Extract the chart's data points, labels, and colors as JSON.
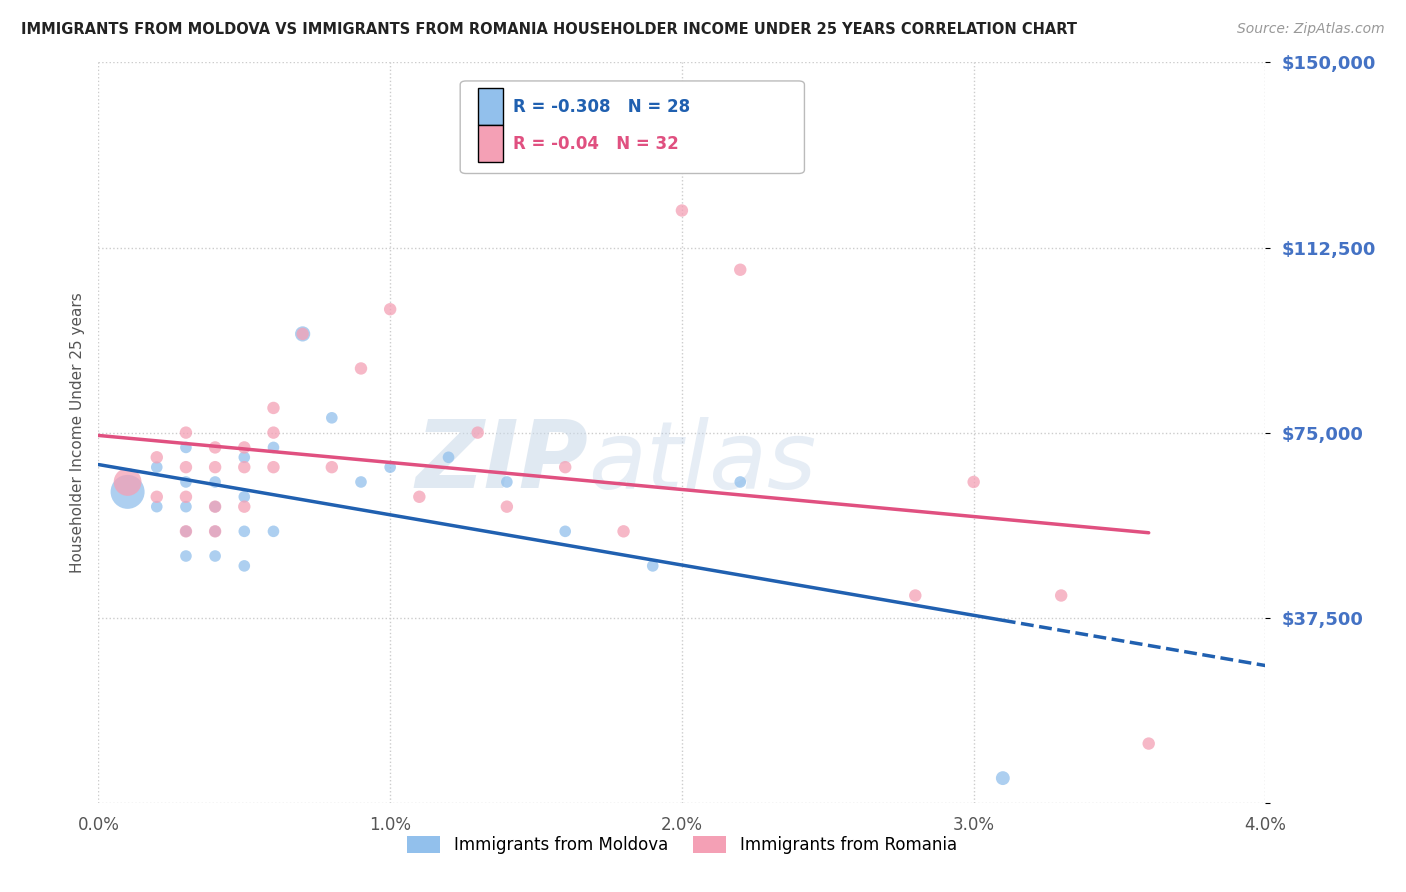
{
  "title": "IMMIGRANTS FROM MOLDOVA VS IMMIGRANTS FROM ROMANIA HOUSEHOLDER INCOME UNDER 25 YEARS CORRELATION CHART",
  "source": "Source: ZipAtlas.com",
  "ylabel": "Householder Income Under 25 years",
  "xlim": [
    0.0,
    0.04
  ],
  "ylim": [
    0,
    150000
  ],
  "yticks": [
    0,
    37500,
    75000,
    112500,
    150000
  ],
  "ytick_labels": [
    "",
    "$37,500",
    "$75,000",
    "$112,500",
    "$150,000"
  ],
  "xtick_labels": [
    "0.0%",
    "1.0%",
    "2.0%",
    "3.0%",
    "4.0%"
  ],
  "xticks": [
    0.0,
    0.01,
    0.02,
    0.03,
    0.04
  ],
  "moldova_color": "#92C0EC",
  "romania_color": "#F4A0B5",
  "moldova_line_color": "#2060B0",
  "romania_line_color": "#E05080",
  "moldova_R": -0.308,
  "moldova_N": 28,
  "romania_R": -0.04,
  "romania_N": 32,
  "legend_label_moldova": "Immigrants from Moldova",
  "legend_label_romania": "Immigrants from Romania",
  "watermark_zip": "ZIP",
  "watermark_atlas": "atlas",
  "background_color": "#FFFFFF",
  "grid_color": "#CCCCCC",
  "title_color": "#222222",
  "axis_label_color": "#555555",
  "ytick_color": "#4472C4",
  "moldova_x": [
    0.001,
    0.002,
    0.002,
    0.003,
    0.003,
    0.003,
    0.003,
    0.003,
    0.004,
    0.004,
    0.004,
    0.004,
    0.005,
    0.005,
    0.005,
    0.005,
    0.006,
    0.006,
    0.007,
    0.008,
    0.009,
    0.01,
    0.012,
    0.014,
    0.016,
    0.019,
    0.022,
    0.031
  ],
  "moldova_y": [
    63000,
    68000,
    60000,
    72000,
    65000,
    60000,
    55000,
    50000,
    65000,
    60000,
    55000,
    50000,
    70000,
    62000,
    55000,
    48000,
    72000,
    55000,
    95000,
    78000,
    65000,
    68000,
    70000,
    65000,
    55000,
    48000,
    65000,
    5000
  ],
  "moldova_size": [
    600,
    70,
    70,
    70,
    70,
    70,
    70,
    70,
    70,
    70,
    70,
    70,
    70,
    70,
    70,
    70,
    70,
    70,
    120,
    70,
    70,
    70,
    70,
    70,
    70,
    70,
    70,
    100
  ],
  "romania_x": [
    0.001,
    0.002,
    0.002,
    0.003,
    0.003,
    0.003,
    0.003,
    0.004,
    0.004,
    0.004,
    0.004,
    0.005,
    0.005,
    0.005,
    0.006,
    0.006,
    0.006,
    0.007,
    0.008,
    0.009,
    0.01,
    0.011,
    0.013,
    0.014,
    0.016,
    0.018,
    0.02,
    0.022,
    0.028,
    0.03,
    0.033,
    0.036
  ],
  "romania_y": [
    65000,
    70000,
    62000,
    75000,
    68000,
    62000,
    55000,
    72000,
    68000,
    60000,
    55000,
    72000,
    68000,
    60000,
    80000,
    75000,
    68000,
    95000,
    68000,
    88000,
    100000,
    62000,
    75000,
    60000,
    68000,
    55000,
    120000,
    108000,
    42000,
    65000,
    42000,
    12000
  ],
  "romania_size": [
    400,
    80,
    80,
    80,
    80,
    80,
    80,
    80,
    80,
    80,
    80,
    80,
    80,
    80,
    80,
    80,
    80,
    80,
    80,
    80,
    80,
    80,
    80,
    80,
    80,
    80,
    80,
    80,
    80,
    80,
    80,
    80
  ]
}
